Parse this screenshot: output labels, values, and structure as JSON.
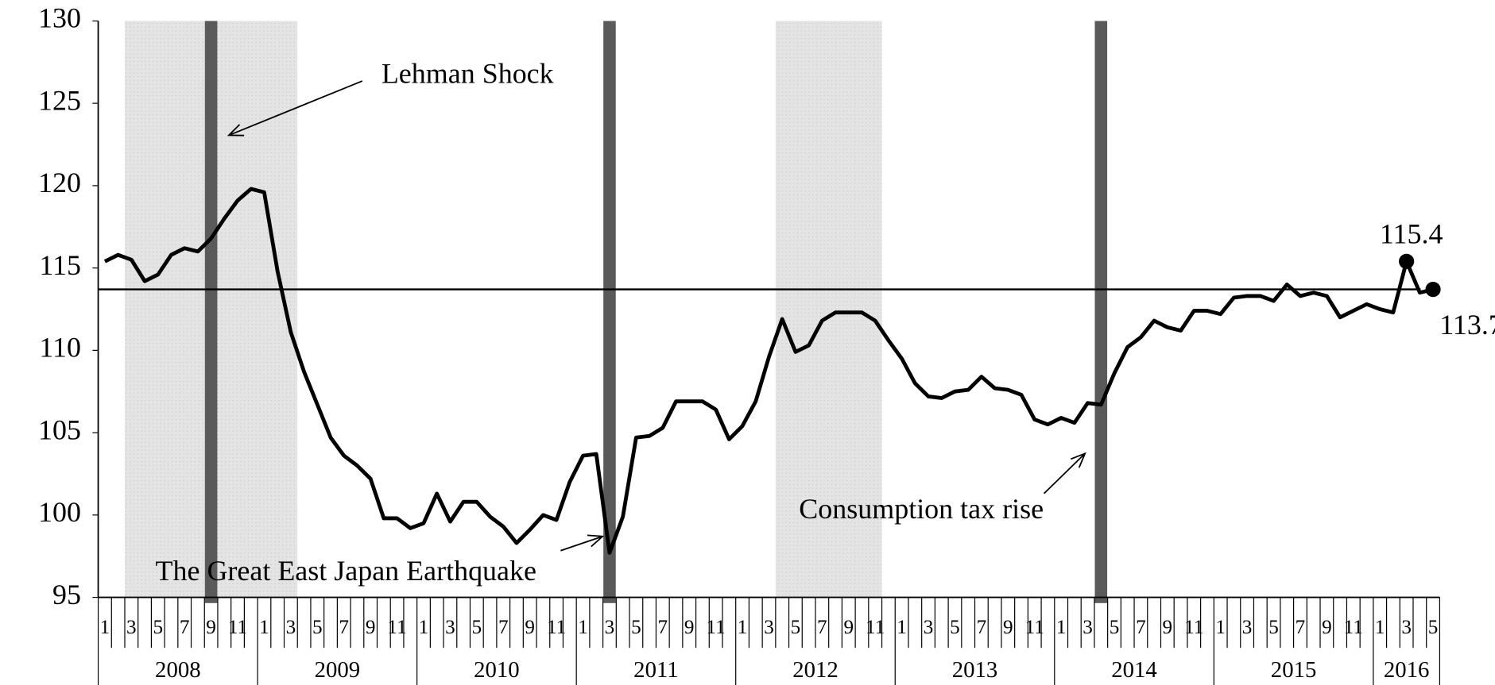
{
  "chart_data": {
    "type": "line",
    "x": [
      "2008-01",
      "2008-02",
      "2008-03",
      "2008-04",
      "2008-05",
      "2008-06",
      "2008-07",
      "2008-08",
      "2008-09",
      "2008-10",
      "2008-11",
      "2008-12",
      "2009-01",
      "2009-02",
      "2009-03",
      "2009-04",
      "2009-05",
      "2009-06",
      "2009-07",
      "2009-08",
      "2009-09",
      "2009-10",
      "2009-11",
      "2009-12",
      "2010-01",
      "2010-02",
      "2010-03",
      "2010-04",
      "2010-05",
      "2010-06",
      "2010-07",
      "2010-08",
      "2010-09",
      "2010-10",
      "2010-11",
      "2010-12",
      "2011-01",
      "2011-02",
      "2011-03",
      "2011-04",
      "2011-05",
      "2011-06",
      "2011-07",
      "2011-08",
      "2011-09",
      "2011-10",
      "2011-11",
      "2011-12",
      "2012-01",
      "2012-02",
      "2012-03",
      "2012-04",
      "2012-05",
      "2012-06",
      "2012-07",
      "2012-08",
      "2012-09",
      "2012-10",
      "2012-11",
      "2012-12",
      "2013-01",
      "2013-02",
      "2013-03",
      "2013-04",
      "2013-05",
      "2013-06",
      "2013-07",
      "2013-08",
      "2013-09",
      "2013-10",
      "2013-11",
      "2013-12",
      "2014-01",
      "2014-02",
      "2014-03",
      "2014-04",
      "2014-05",
      "2014-06",
      "2014-07",
      "2014-08",
      "2014-09",
      "2014-10",
      "2014-11",
      "2014-12",
      "2015-01",
      "2015-02",
      "2015-03",
      "2015-04",
      "2015-05",
      "2015-06",
      "2015-07",
      "2015-08",
      "2015-09",
      "2015-10",
      "2015-11",
      "2015-12",
      "2016-01",
      "2016-02",
      "2016-03",
      "2016-04",
      "2016-05"
    ],
    "month_labels": [
      "1",
      null,
      "3",
      null,
      "5",
      null,
      "7",
      null,
      "9",
      null,
      "11",
      null,
      "1",
      null,
      "3",
      null,
      "5",
      null,
      "7",
      null,
      "9",
      null,
      "11",
      null,
      "1",
      null,
      "3",
      null,
      "5",
      null,
      "7",
      null,
      "9",
      null,
      "11",
      null,
      "1",
      null,
      "3",
      null,
      "5",
      null,
      "7",
      null,
      "9",
      null,
      "11",
      null,
      "1",
      null,
      "3",
      null,
      "5",
      null,
      "7",
      null,
      "9",
      null,
      "11",
      null,
      "1",
      null,
      "3",
      null,
      "5",
      null,
      "7",
      null,
      "9",
      null,
      "11",
      null,
      "1",
      null,
      "3",
      null,
      "5",
      null,
      "7",
      null,
      "9",
      null,
      "11",
      null,
      "1",
      null,
      "3",
      null,
      "5",
      null,
      "7",
      null,
      "9",
      null,
      "11",
      null,
      "1",
      null,
      "3",
      null,
      "5"
    ],
    "year_labels": [
      "2008",
      "2009",
      "2010",
      "2011",
      "2012",
      "2013",
      "2014",
      "2015",
      "2016"
    ],
    "series": [
      {
        "color": "#000000",
        "values": [
          115.4,
          115.8,
          115.5,
          114.2,
          114.6,
          115.8,
          116.2,
          116.0,
          116.8,
          118.0,
          119.1,
          119.8,
          119.6,
          114.8,
          111.1,
          108.7,
          106.7,
          104.7,
          103.6,
          103.0,
          102.2,
          99.8,
          99.8,
          99.2,
          99.5,
          101.3,
          99.6,
          100.8,
          100.8,
          99.9,
          99.3,
          98.3,
          99.1,
          100.0,
          99.7,
          102.0,
          103.6,
          103.7,
          97.7,
          99.9,
          104.7,
          104.8,
          105.3,
          106.9,
          106.9,
          106.9,
          106.4,
          104.6,
          105.4,
          106.9,
          109.6,
          111.9,
          109.9,
          110.3,
          111.8,
          112.3,
          112.3,
          112.3,
          111.8,
          110.6,
          109.5,
          108.0,
          107.2,
          107.1,
          107.5,
          107.6,
          108.4,
          107.7,
          107.6,
          107.3,
          105.8,
          105.5,
          105.9,
          105.6,
          106.8,
          106.7,
          108.6,
          110.2,
          110.8,
          111.8,
          111.4,
          111.2,
          112.4,
          112.4,
          112.2,
          113.2,
          113.3,
          113.3,
          113.0,
          114.0,
          113.3,
          113.5,
          113.3,
          112.0,
          112.4,
          112.8,
          112.5,
          112.3,
          115.4,
          113.5,
          113.7
        ]
      }
    ],
    "highlight": [
      "2016-03",
      "2016-05"
    ],
    "reference_line": 113.7,
    "shaded_periods": [
      {
        "start": "2008-03",
        "end": "2009-03"
      },
      {
        "start": "2012-04",
        "end": "2012-11"
      }
    ],
    "events": [
      {
        "x": "2008-09",
        "label": "Lehman Shock"
      },
      {
        "x": "2011-03",
        "label": "The Great East Japan Earthquake"
      },
      {
        "x": "2014-04",
        "label": "Consumption tax rise"
      }
    ],
    "ylim": [
      95,
      130
    ],
    "yticks": [
      95,
      100,
      105,
      110,
      115,
      120,
      125,
      130
    ]
  }
}
